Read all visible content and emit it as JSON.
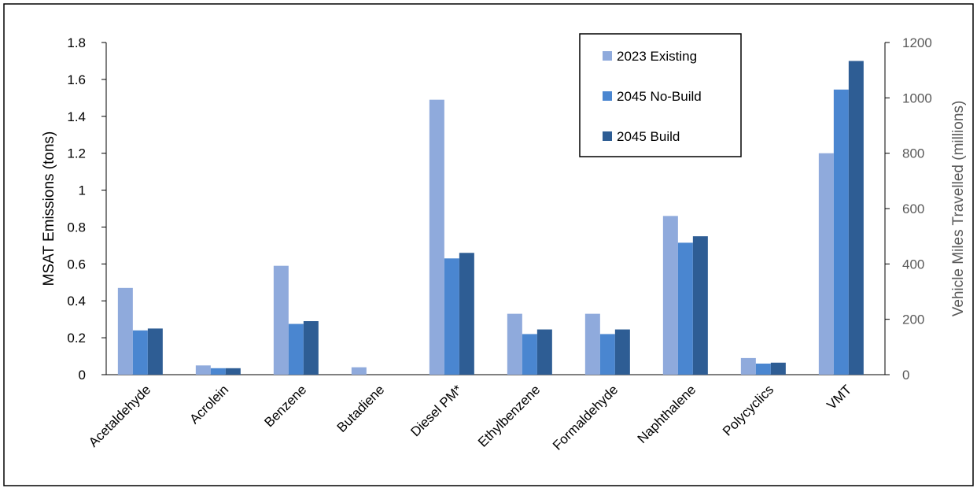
{
  "chart_data": {
    "type": "bar",
    "categories": [
      "Acetaldehyde",
      "Acrolein",
      "Benzene",
      "Butadiene",
      "Diesel PM*",
      "Ethylbenzene",
      "Formaldehyde",
      "Naphthalene",
      "Polycyclics",
      "VMT"
    ],
    "series": [
      {
        "name": "2023 Existing",
        "color": "#8faadc",
        "values": [
          0.47,
          0.05,
          0.59,
          0.04,
          1.49,
          0.33,
          0.33,
          0.86,
          0.09,
          1.2
        ]
      },
      {
        "name": "2045 No-Build",
        "color": "#4a86d0",
        "values": [
          0.24,
          0.035,
          0.275,
          0,
          0.63,
          0.22,
          0.22,
          0.715,
          0.06,
          1.545
        ]
      },
      {
        "name": "2045 Build",
        "color": "#2e5d94",
        "values": [
          0.25,
          0.035,
          0.29,
          0,
          0.66,
          0.245,
          0.245,
          0.75,
          0.065,
          1.7
        ]
      }
    ],
    "ylabel": "MSAT Emissions (tons)",
    "y2label": "Vehicle Miles Travelled  (millions)",
    "ylim": [
      0,
      1.8
    ],
    "y2lim": [
      0,
      1200
    ],
    "yticks": [
      "0",
      "0.2",
      "0.4",
      "0.6",
      "0.8",
      "1",
      "1.2",
      "1.4",
      "1.6",
      "1.8"
    ],
    "y2ticks": [
      "0",
      "200",
      "400",
      "600",
      "800",
      "1000",
      "1200"
    ],
    "grid": false,
    "legend_position": "top-right"
  }
}
